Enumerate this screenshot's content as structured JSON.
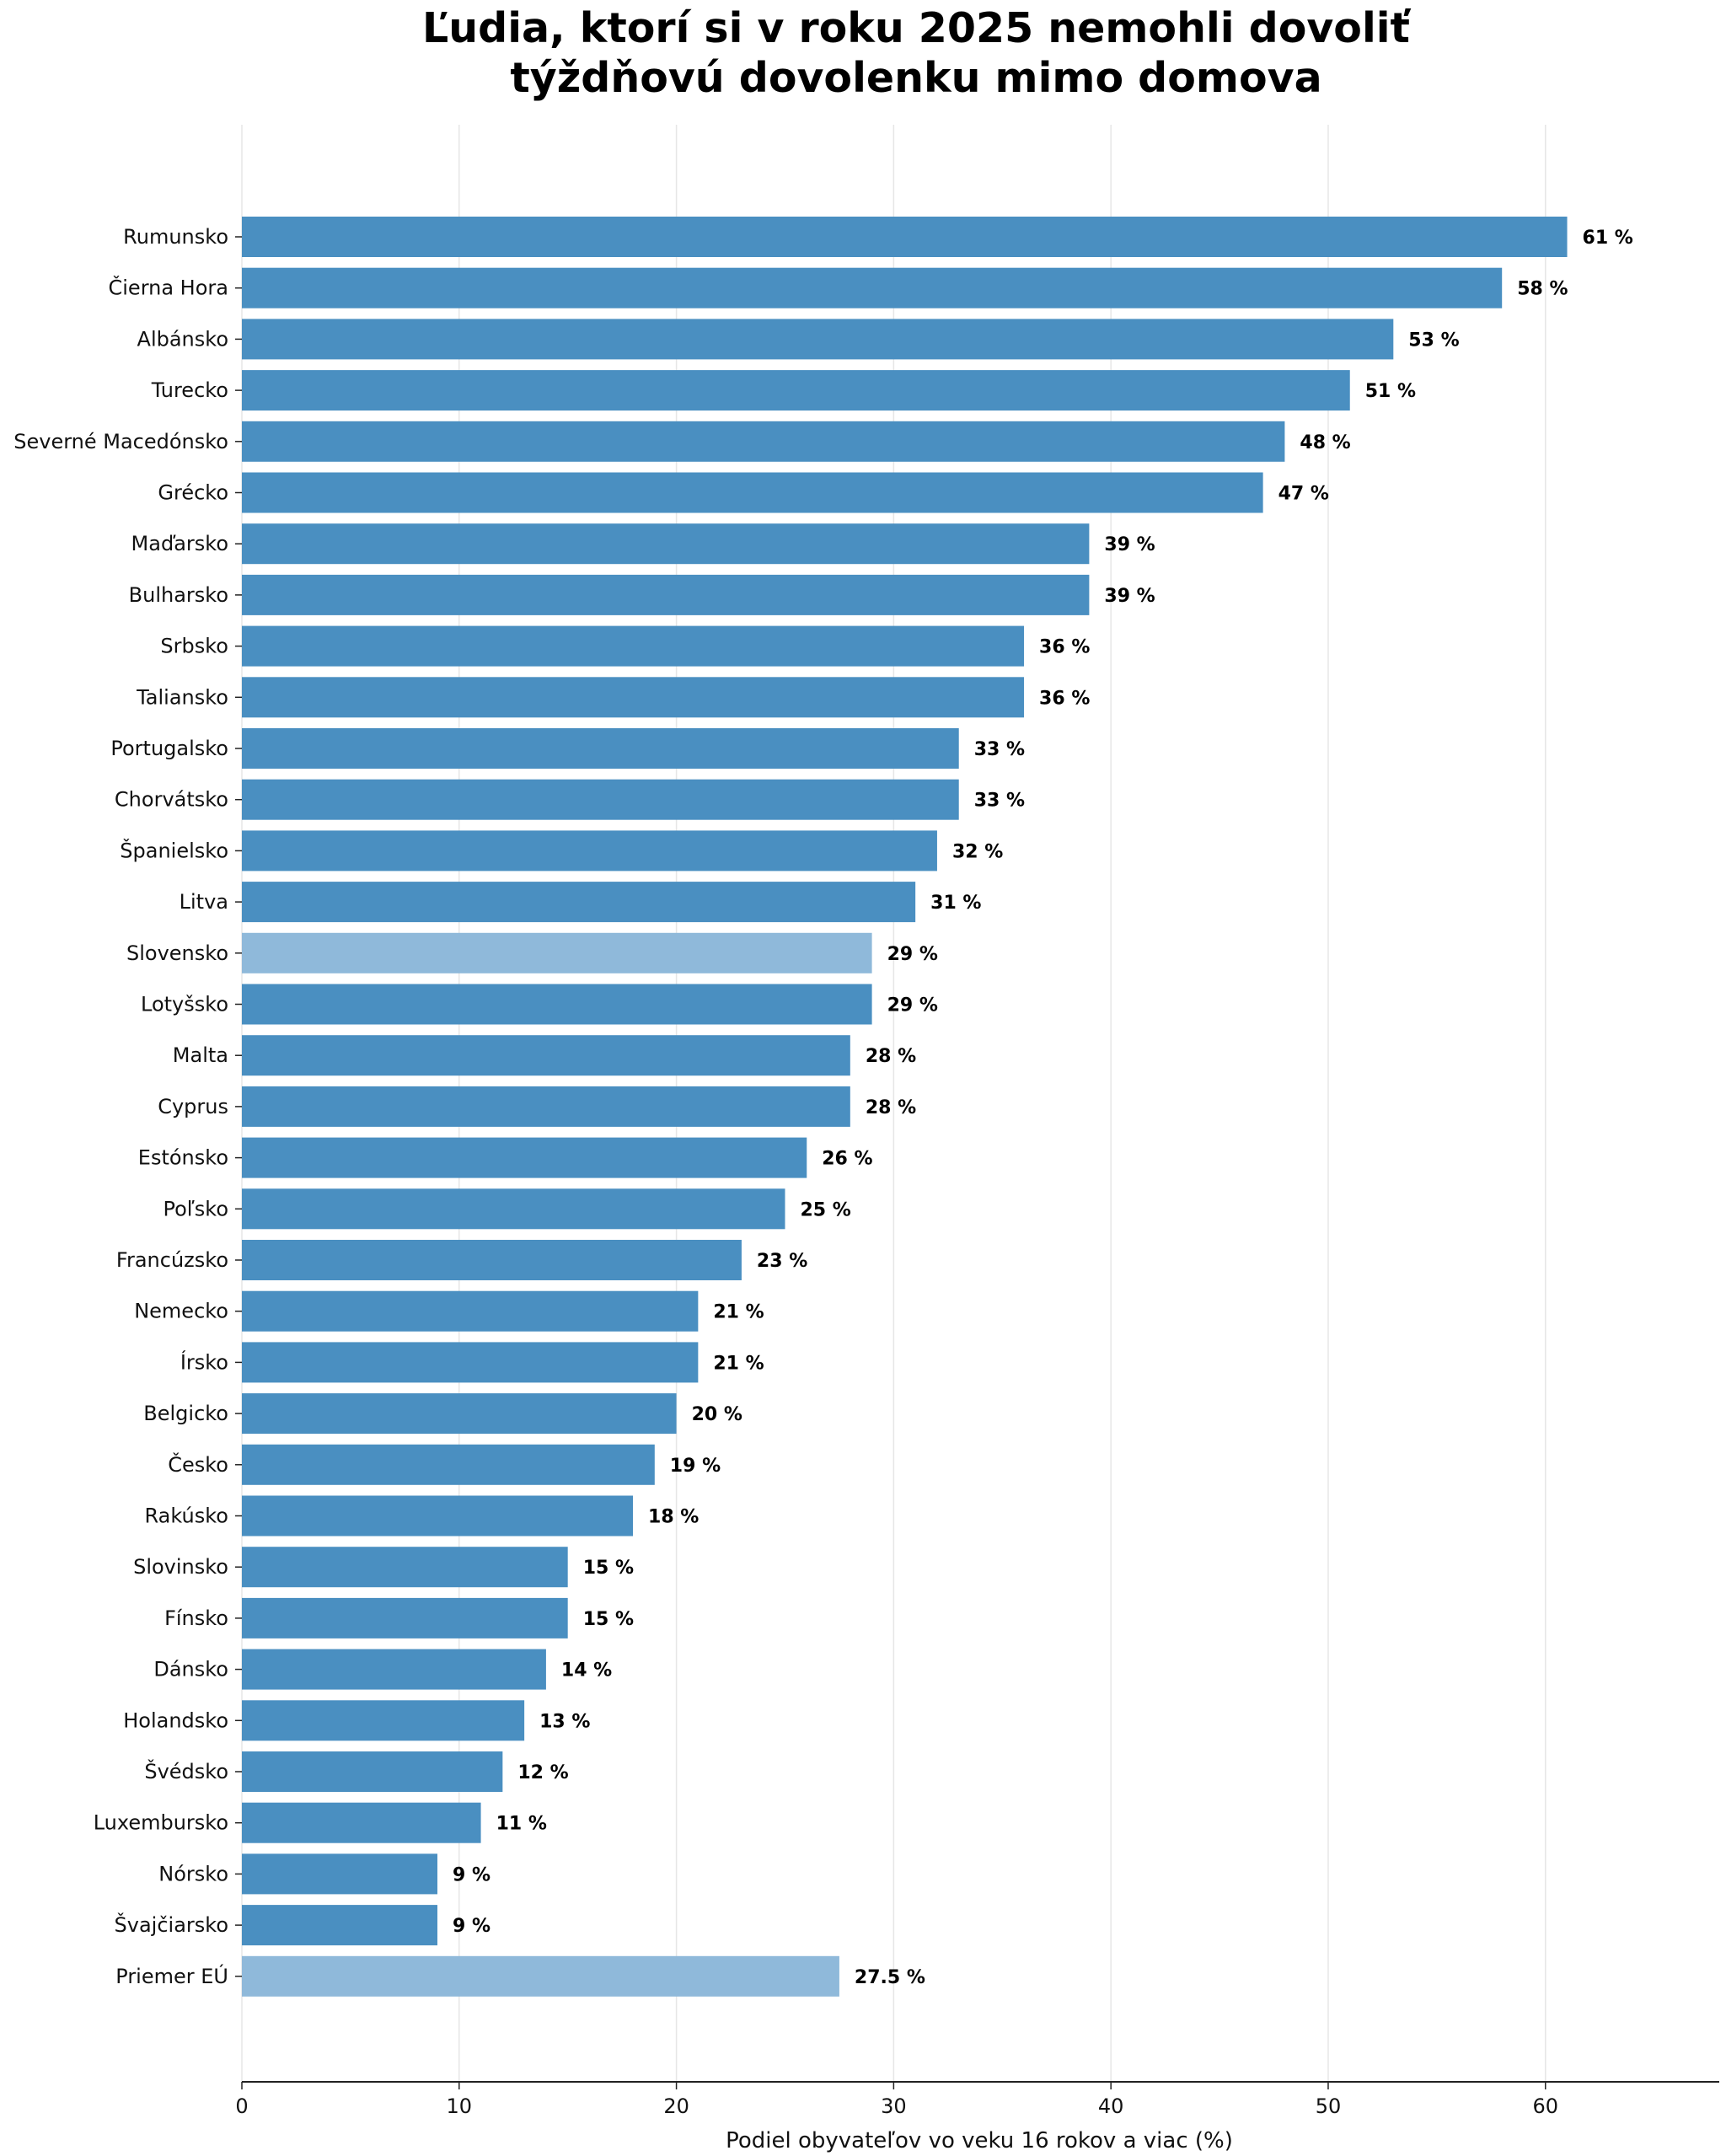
{
  "chart_data": {
    "type": "bar",
    "orientation": "horizontal",
    "title_lines": [
      "Ľudia, ktorí si v roku 2025 nemohli dovoliť",
      "týždňovú dovolenku mimo domova"
    ],
    "xlabel": "Podiel obyvateľov vo veku 16 rokov a viac (%)",
    "ylabel": "",
    "xlim": [
      0,
      68
    ],
    "xticks": [
      0,
      10,
      20,
      30,
      40,
      50,
      60
    ],
    "grid": "vertical",
    "colors": {
      "default": "#4a8fc1",
      "highlight": "#8fb9da"
    },
    "categories": [
      "Rumunsko",
      "Čierna Hora",
      "Albánsko",
      "Turecko",
      "Severné Macedónsko",
      "Grécko",
      "Maďarsko",
      "Bulharsko",
      "Srbsko",
      "Taliansko",
      "Portugalsko",
      "Chorvátsko",
      "Španielsko",
      "Litva",
      "Slovensko",
      "Lotyšsko",
      "Malta",
      "Cyprus",
      "Estónsko",
      "Poľsko",
      "Francúzsko",
      "Nemecko",
      "Írsko",
      "Belgicko",
      "Česko",
      "Rakúsko",
      "Slovinsko",
      "Fínsko",
      "Dánsko",
      "Holandsko",
      "Švédsko",
      "Luxembursko",
      "Nórsko",
      "Švajčiarsko",
      "Priemer EÚ"
    ],
    "values": [
      61,
      58,
      53,
      51,
      48,
      47,
      39,
      39,
      36,
      36,
      33,
      33,
      32,
      31,
      29,
      29,
      28,
      28,
      26,
      25,
      23,
      21,
      21,
      20,
      19,
      18,
      15,
      15,
      14,
      13,
      12,
      11,
      9,
      9,
      27.5
    ],
    "value_labels": [
      "61 %",
      "58 %",
      "53 %",
      "51 %",
      "48 %",
      "47 %",
      "39 %",
      "39 %",
      "36 %",
      "36 %",
      "33 %",
      "33 %",
      "32 %",
      "31 %",
      "29 %",
      "29 %",
      "28 %",
      "28 %",
      "26 %",
      "25 %",
      "23 %",
      "21 %",
      "21 %",
      "20 %",
      "19 %",
      "18 %",
      "15 %",
      "15 %",
      "14 %",
      "13 %",
      "12 %",
      "11 %",
      "9 %",
      "9 %",
      "27.5 %"
    ],
    "highlighted": [
      "Slovensko",
      "Priemer EÚ"
    ]
  }
}
